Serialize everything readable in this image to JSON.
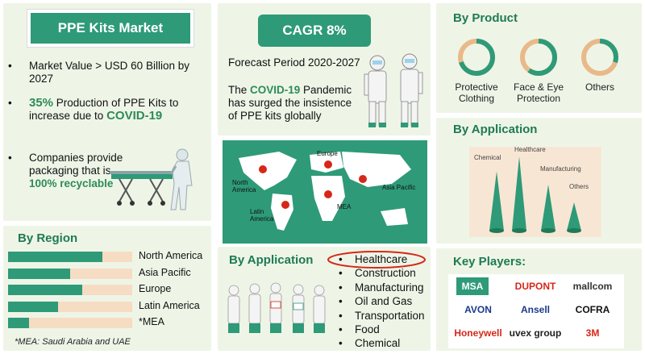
{
  "left": {
    "title": "PPE Kits Market",
    "bullets": [
      {
        "text": "Market Value > USD 60 Billion by 2027"
      },
      {
        "highlight": "35%",
        "text": " Production of PPE Kits to increase due to ",
        "highlight2": "COVID-19"
      },
      {
        "text": "Companies provide packaging that is ",
        "highlight": "100% recyclable"
      }
    ],
    "region_title": "By Region",
    "regions": [
      {
        "label": "North America",
        "value": 0.76
      },
      {
        "label": "Asia Pacific",
        "value": 0.5
      },
      {
        "label": "Europe",
        "value": 0.6
      },
      {
        "label": "Latin America",
        "value": 0.4
      },
      {
        "label": "*MEA",
        "value": 0.17
      }
    ],
    "footnote": "*MEA: Saudi Arabia and UAE"
  },
  "middle": {
    "cagr": "CAGR 8%",
    "forecast": "Forecast Period 2020-2027",
    "covid_pre": "The ",
    "covid_word": "COVID-19",
    "covid_post": " Pandemic has surged the insistence of PPE kits globally",
    "map_labels": {
      "north_america": "North America",
      "europe": "Europe",
      "asia_pacific": "Asia Pacific",
      "latin_america": "Latin America",
      "mea": "MEA"
    },
    "app_title": "By Application",
    "applications": [
      "Healthcare",
      "Construction",
      "Manufacturing",
      "Oil and Gas",
      "Transportation",
      "Food",
      "Chemical"
    ],
    "bullet": "•"
  },
  "right": {
    "product_title": "By Product",
    "products": [
      {
        "label": "Protective Clothing",
        "value": 0.7
      },
      {
        "label": "Face & Eye Protection",
        "value": 0.6
      },
      {
        "label": "Others",
        "value": 0.3
      }
    ],
    "app_title": "By Application",
    "cones": [
      {
        "label": "Chemical",
        "value": 0.8
      },
      {
        "label": "Healthcare",
        "value": 1.0
      },
      {
        "label": "Manufacturing",
        "value": 0.62
      },
      {
        "label": "Others",
        "value": 0.38
      }
    ],
    "players_title": "Key Players:",
    "players": [
      "MSA",
      "DUPONT",
      "mallcom",
      "AVON",
      "Ansell",
      "COFRA",
      "Honeywell",
      "uvex group",
      "3M"
    ],
    "colors": {
      "green": "#2e9a78",
      "peach": "#f6dcc2",
      "red": "#d62718"
    }
  }
}
